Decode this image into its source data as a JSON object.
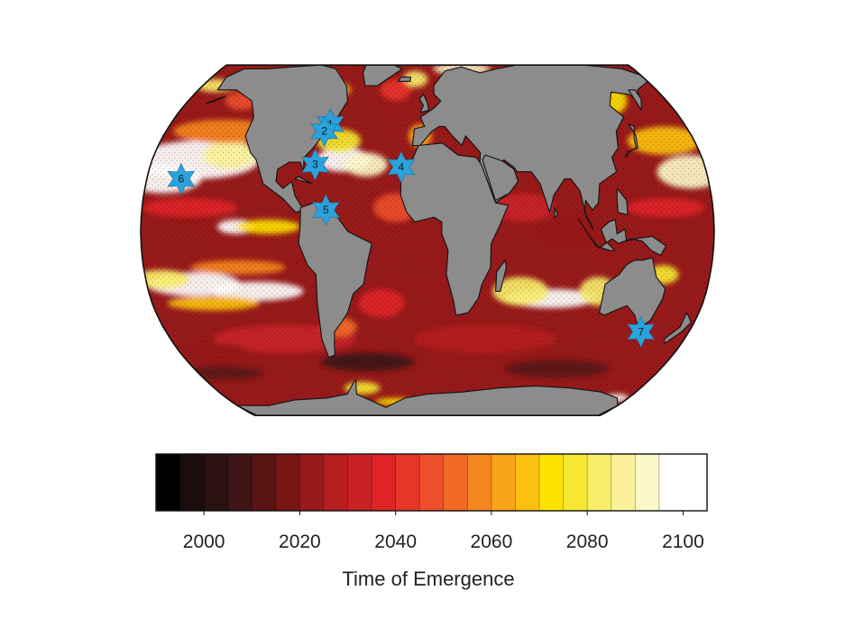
{
  "map": {
    "projection": "Robinson",
    "land_color": "#8c8c8c",
    "coastline_color": "#111111",
    "ocean_field": "time of emergence",
    "markers": [
      {
        "label": "1",
        "color": "#2aa3dc",
        "lon": -68,
        "lat": 45
      },
      {
        "label": "2",
        "color": "#2aa3dc",
        "lon": -71,
        "lat": 42
      },
      {
        "label": "3",
        "color": "#2aa3dc",
        "lon": -73,
        "lat": 28
      },
      {
        "label": "4",
        "color": "#2aa3dc",
        "lon": -17,
        "lat": 27
      },
      {
        "label": "5",
        "color": "#2aa3dc",
        "lon": -64,
        "lat": 9
      },
      {
        "label": "6",
        "color": "#2aa3dc",
        "lon": -158,
        "lat": 22
      },
      {
        "label": "7",
        "color": "#2aa3dc",
        "lon": 147,
        "lat": -42
      }
    ]
  },
  "chart_data": {
    "type": "heatmap",
    "title": "",
    "xlabel": "Time of Emergence",
    "colorbar": {
      "min": 1990,
      "max": 2105,
      "step": 5,
      "ticks": [
        2000,
        2020,
        2040,
        2060,
        2080,
        2100
      ],
      "tick_labels": [
        "2000",
        "2020",
        "2040",
        "2060",
        "2080",
        "2100"
      ],
      "colors": [
        "#000000",
        "#1a0d0d",
        "#2a1212",
        "#3e1515",
        "#5a1414",
        "#7a1515",
        "#981a1a",
        "#b61e20",
        "#c92226",
        "#e02426",
        "#e8352a",
        "#ee4e2a",
        "#f26a26",
        "#f6861f",
        "#f9a51a",
        "#fcc10e",
        "#fde200",
        "#f6e832",
        "#f8ee6a",
        "#faf29a",
        "#fcf7c9",
        "#ffffff"
      ]
    }
  }
}
